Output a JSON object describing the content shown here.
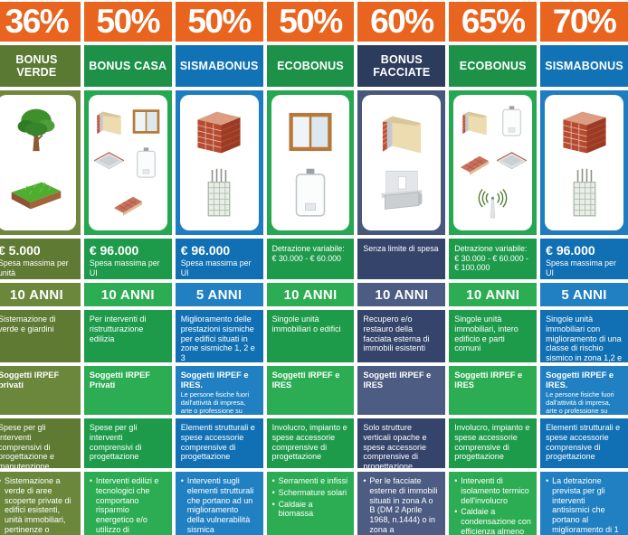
{
  "colors": {
    "header_orange": "#E8641F",
    "themes": {
      "olive": {
        "name": "#5A7A33",
        "img": "#6F883E",
        "dark": "#5E7A33",
        "light": "#6B873C"
      },
      "green": {
        "name": "#1E9149",
        "img": "#26A751",
        "dark": "#1E9B4A",
        "light": "#2CAD53"
      },
      "blue": {
        "name": "#1173B5",
        "img": "#1E7DC0",
        "dark": "#1170B3",
        "light": "#2080C2"
      },
      "navy": {
        "name": "#2C3C5C",
        "img": "#47587C",
        "dark": "#35446A",
        "light": "#4C5C82"
      }
    }
  },
  "columns": [
    {
      "pct": "36%",
      "name": "BONUS VERDE",
      "theme": "olive",
      "icons": [
        "tree-icon",
        "grass-patch-icon"
      ],
      "limit": {
        "amount": "€ 5.000",
        "note": "Spesa massima per unità"
      },
      "duration": "10 ANNI",
      "target": "Sistemazione di verde e giardini",
      "subjects": "Soggetti IRPEF privati",
      "subjects_note": "",
      "expenses": "Spese per gli interventi comprensivi di progettazione e manutenzione connesse all'esecuzione",
      "interventions": [
        "Sistemazione a verde di aree scoperte private di edifici esistenti, unità immobiliari, pertinenze o"
      ]
    },
    {
      "pct": "50%",
      "name": "BONUS CASA",
      "theme": "green",
      "icons": [
        "wall-insulation-icon",
        "window-icon",
        "attic-insulation-icon",
        "boiler-icon",
        "roof-tiles-icon"
      ],
      "limit": {
        "amount": "€ 96.000",
        "note": "Spesa massima per UI"
      },
      "duration": "10 ANNI",
      "target": "Per interventi di ristrutturazione edilizia",
      "subjects": "Soggetti IRPEF Privati",
      "subjects_note": "",
      "expenses": "Spese per gli interventi comprensivi di progettazione",
      "interventions": [
        "Interventi edilizi e tecnologici che comportano risparmio energetico e/o utilizzo di"
      ]
    },
    {
      "pct": "50%",
      "name": "SISMABONUS",
      "theme": "blue",
      "icons": [
        "brick-wall-icon",
        "concrete-column-icon"
      ],
      "limit": {
        "amount": "€ 96.000",
        "note": "Spesa massima per UI"
      },
      "duration": "5 ANNI",
      "target": "Miglioramento delle prestazioni sismiche per edifici situati in zone sismiche 1, 2 e 3",
      "subjects": "Soggetti IRPEF e IRES.",
      "subjects_note": "Le persone fisiche fuori dall'attività di impresa, arte o professione su edifici residenziali accedono al SUPERBONUS 110%",
      "expenses": "Elementi strutturali e spese accessorie comprensive di progettazione",
      "interventions": [
        "Interventi sugli elementi strutturali che portano ad un miglioramento della vulnerabilità sismica"
      ]
    },
    {
      "pct": "50%",
      "name": "ECOBONUS",
      "theme": "green",
      "icons": [
        "window-icon",
        "boiler-icon"
      ],
      "limit": {
        "amount": "",
        "note": "Detrazione variabile: € 30.000 - € 60.000"
      },
      "duration": "10 ANNI",
      "target": "Singole unità immobiliari o edifici",
      "subjects": "Soggetti IRPEF e IRES",
      "subjects_note": "",
      "expenses": "Involucro, impianto e spese accessorie comprensive di progettazione",
      "interventions": [
        "Serramenti e infissi",
        "Schermature solari",
        "Caldaie a biomassa"
      ]
    },
    {
      "pct": "60%",
      "name": "BONUS FACCIATE",
      "theme": "navy",
      "icons": [
        "wall-insulation-icon",
        "facade-balcony-icon"
      ],
      "limit": {
        "amount": "",
        "note": "Senza limite di spesa"
      },
      "duration": "10 ANNI",
      "target": "Recupero e/o restauro della facciata esterna di immobili esistenti",
      "subjects": "Soggetti IRPEF e IRES",
      "subjects_note": "",
      "expenses": "Solo strutture verticali opache e spese accessorie comprensive di progettazione",
      "interventions": [
        "Per le facciate esterne di immobili situati in zona A o B (DM 2 Aprile 1968, n.1444) o in zona a"
      ]
    },
    {
      "pct": "65%",
      "name": "ECOBONUS",
      "theme": "green",
      "icons": [
        "wall-insulation-icon",
        "boiler-icon",
        "roof-tiles-icon",
        "attic-insulation-icon",
        "antenna-icon"
      ],
      "limit": {
        "amount": "",
        "note": "Detrazione variabile: € 30.000 - € 60.000 - € 100.000"
      },
      "duration": "10 ANNI",
      "target": "Singole unità immobiliari, intero edificio e parti comuni",
      "subjects": "Soggetti IRPEF e IRES",
      "subjects_note": "",
      "expenses": "Involucro, impianto e spese accessorie comprensive di progettazione",
      "interventions": [
        "Interventi di isolamento termico dell'involucro",
        "Caldaie a condensazione con efficienza almeno pari"
      ]
    },
    {
      "pct": "70%",
      "name": "SISMABONUS",
      "theme": "blue",
      "icons": [
        "brick-wall-icon",
        "concrete-column-icon"
      ],
      "limit": {
        "amount": "€ 96.000",
        "note": "Spesa massima per UI"
      },
      "duration": "5 ANNI",
      "target": "Singole unità immobiliari con miglioramento di una classe di rischio sismico in zona 1,2 e 3",
      "subjects": "Soggetti IRPEF e IRES.",
      "subjects_note": "Le persone fisiche fuori dall'attività di impresa, arte o professione su edifici residenziali accedono al SUPERBONUS 110%",
      "expenses": "Elementi strutturali e spese accessorie comprensive di progettazione",
      "interventions": [
        "La detrazione prevista per gli interventi antisismici che portano al miglioramento di 1 classe"
      ]
    }
  ]
}
